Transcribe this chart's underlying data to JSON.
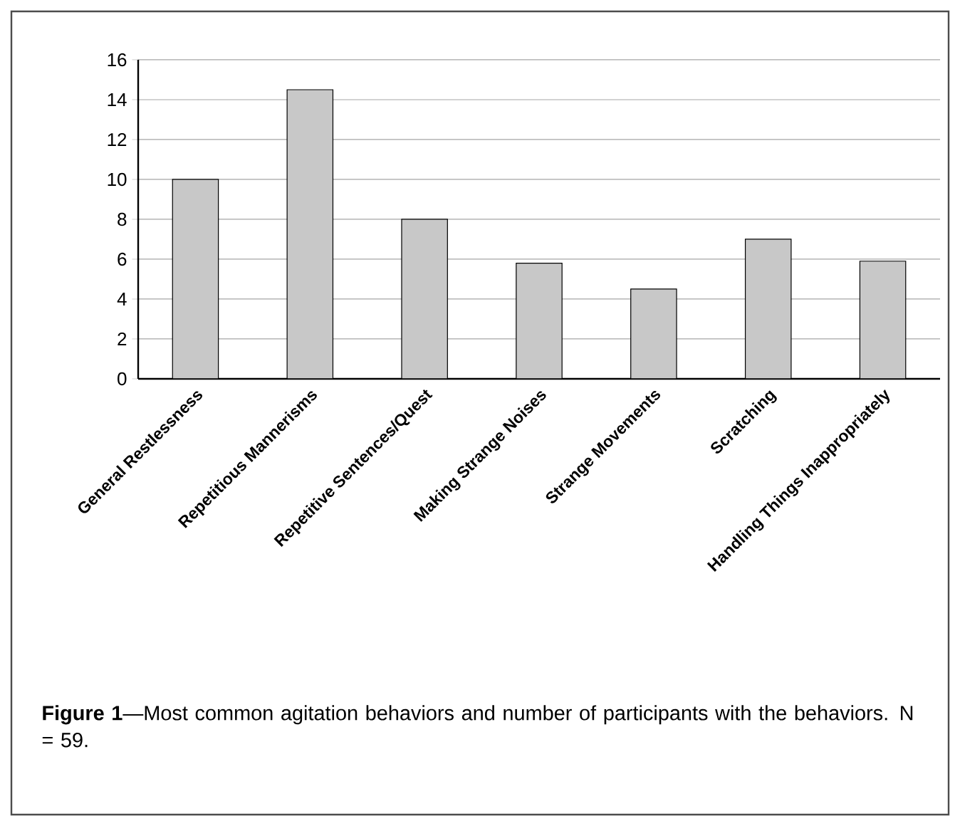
{
  "chart_data": {
    "type": "bar",
    "categories": [
      "General Restlessness",
      "Repetitious Mannerisms",
      "Repetitive Sentences/Quest",
      "Making Strange Noises",
      "Strange Movements",
      "Scratching",
      "Handling Things Inappropriately"
    ],
    "values": [
      10,
      14.5,
      8,
      5.8,
      4.5,
      7,
      5.9
    ],
    "color": "#c8c8c8",
    "ylim": [
      0,
      16
    ],
    "yticks": [
      0,
      2,
      4,
      6,
      8,
      10,
      12,
      14,
      16
    ],
    "grid": "y",
    "annotations": [
      "**Figure 1**—Most common agitation behaviors and number of participants with the behaviors. N = 59."
    ]
  }
}
